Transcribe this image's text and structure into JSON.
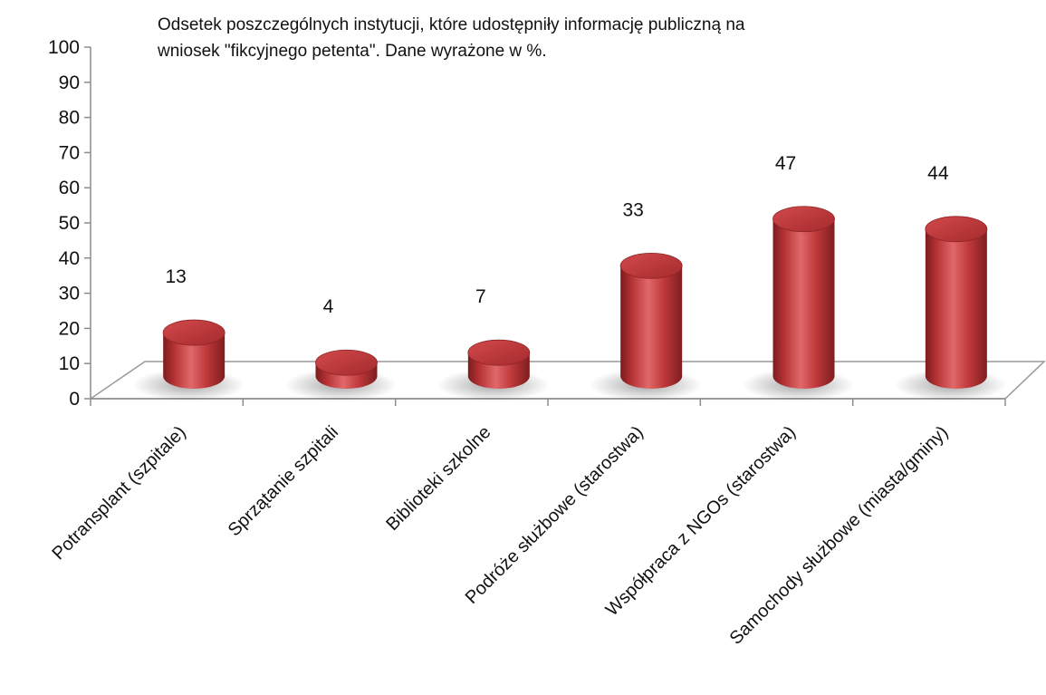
{
  "chart_data": {
    "type": "bar",
    "title": "Odsetek poszczególnych instytucji, które udostępniły informację publiczną na wniosek \"fikcyjnego petenta\". Dane wyrażone w %.",
    "title_lines": [
      "Odsetek poszczególnych instytucji, które udostępniły informację publiczną na",
      "wniosek \"fikcyjnego petenta\". Dane wyrażone w %."
    ],
    "categories": [
      "Potransplant (szpitale)",
      "Sprzątanie szpitali",
      "Biblioteki szkolne",
      "Podróże służbowe (starostwa)",
      "Współpraca z NGOs (starostwa)",
      "Samochody służbowe (miasta/gminy)"
    ],
    "values": [
      13,
      4,
      7,
      33,
      47,
      44
    ],
    "data_labels": [
      "13",
      "4",
      "7",
      "33",
      "47",
      "44"
    ],
    "ylim": [
      0,
      100
    ],
    "yticks": [
      "0",
      "10",
      "20",
      "30",
      "40",
      "50",
      "60",
      "70",
      "80",
      "90",
      "100"
    ],
    "xlabel": "",
    "ylabel": "",
    "style": "3d-cylinder",
    "bar_color": "#c0393b",
    "grid": false,
    "legend": "none"
  }
}
